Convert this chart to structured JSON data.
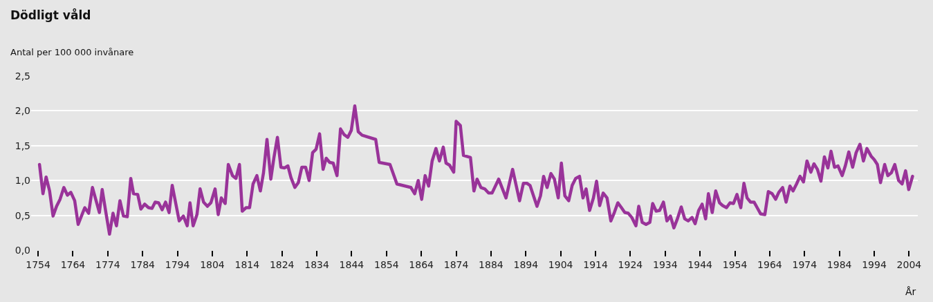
{
  "chart_data": {
    "type": "line",
    "title": "Dödligt våld",
    "ylabel": "Antal per 100 000 invånare",
    "xlabel": "År",
    "x": [
      1754.4,
      1755.4,
      1756.3,
      1757.3,
      1758.3,
      1759.3,
      1760.3,
      1761.4,
      1762.4,
      1763.4,
      1764.5,
      1765.5,
      1767.4,
      1768.5,
      1769.6,
      1771.6,
      1772.4,
      1773.5,
      1774.5,
      1775.5,
      1776.5,
      1777.5,
      1778.5,
      1779.6,
      1780.6,
      1781.4,
      1782.6,
      1783.5,
      1784.6,
      1785.7,
      1786.7,
      1787.6,
      1788.6,
      1789.6,
      1790.6,
      1791.6,
      1792.5,
      1794.5,
      1795.7,
      1796.8,
      1797.6,
      1798.5,
      1799.6,
      1800.5,
      1801.5,
      1802.6,
      1803.6,
      1804.8,
      1805.7,
      1806.6,
      1807.7,
      1808.6,
      1809.8,
      1810.8,
      1811.8,
      1812.6,
      1813.7,
      1814.7,
      1815.7,
      1816.8,
      1817.8,
      1818.7,
      1819.7,
      1820.8,
      1821.7,
      1822.7,
      1823.7,
      1824.7,
      1825.7,
      1826.6,
      1827.7,
      1828.7,
      1829.7,
      1830.8,
      1831.8,
      1832.8,
      1833.8,
      1834.8,
      1835.8,
      1836.7,
      1837.7,
      1838.7,
      1839.8,
      1840.8,
      1841.8,
      1842.9,
      1843.9,
      1844.9,
      1845.9,
      1847.0,
      1850.9,
      1851.9,
      1855.0,
      1857.0,
      1859.4,
      1861.0,
      1862.1,
      1863.1,
      1864.1,
      1865.1,
      1866.1,
      1867.1,
      1868.2,
      1869.2,
      1870.3,
      1871.1,
      1872.1,
      1873.3,
      1874.0,
      1875.2,
      1876.1,
      1878.1,
      1879.1,
      1880.0,
      1881.1,
      1882.2,
      1883.3,
      1884.3,
      1886.2,
      1888.3,
      1890.2,
      1892.2,
      1893.3,
      1894.3,
      1895.2,
      1897.2,
      1898.2,
      1899.1,
      1900.1,
      1901.2,
      1902.2,
      1903.3,
      1904.2,
      1905.2,
      1906.3,
      1907.3,
      1908.3,
      1909.4,
      1910.4,
      1911.3,
      1912.3,
      1913.4,
      1914.3,
      1915.2,
      1916.2,
      1917.3,
      1918.4,
      1919.4,
      1920.4,
      1921.3,
      1922.4,
      1923.4,
      1924.4,
      1925.6,
      1926.4,
      1927.4,
      1928.5,
      1929.6,
      1930.4,
      1931.4,
      1932.4,
      1933.5,
      1934.5,
      1935.5,
      1936.5,
      1937.5,
      1938.6,
      1939.6,
      1940.6,
      1941.7,
      1942.6,
      1943.6,
      1944.6,
      1945.6,
      1946.4,
      1947.5,
      1948.5,
      1949.6,
      1950.5,
      1951.6,
      1952.6,
      1953.6,
      1954.6,
      1955.7,
      1956.6,
      1957.5,
      1958.5,
      1959.5,
      1960.4,
      1961.4,
      1962.6,
      1963.6,
      1964.7,
      1965.7,
      1966.6,
      1967.7,
      1968.7,
      1969.8,
      1970.7,
      1971.7,
      1972.7,
      1973.7,
      1974.7,
      1975.8,
      1976.7,
      1977.7,
      1978.7,
      1979.7,
      1980.7,
      1981.6,
      1982.6,
      1983.6,
      1984.8,
      1985.7,
      1986.7,
      1987.8,
      1988.8,
      1989.9,
      1990.9,
      1991.9,
      1993.1,
      1994.0,
      1994.9,
      1995.8,
      1997.0,
      1997.9,
      1998.9,
      1999.9,
      2001.0,
      2002.0,
      2003.0,
      2003.9,
      2005.0
    ],
    "series": [
      {
        "color": "#993399",
        "values": [
          1.23,
          0.81,
          1.05,
          0.85,
          0.49,
          0.63,
          0.73,
          0.9,
          0.79,
          0.83,
          0.71,
          0.37,
          0.61,
          0.53,
          0.9,
          0.54,
          0.87,
          0.53,
          0.23,
          0.53,
          0.35,
          0.71,
          0.49,
          0.48,
          1.03,
          0.81,
          0.8,
          0.59,
          0.66,
          0.61,
          0.6,
          0.69,
          0.68,
          0.58,
          0.69,
          0.54,
          0.93,
          0.42,
          0.49,
          0.35,
          0.68,
          0.35,
          0.51,
          0.88,
          0.69,
          0.63,
          0.68,
          0.88,
          0.51,
          0.75,
          0.67,
          1.23,
          1.07,
          1.03,
          1.23,
          0.56,
          0.61,
          0.61,
          0.95,
          1.07,
          0.85,
          1.11,
          1.59,
          1.02,
          1.33,
          1.62,
          1.19,
          1.18,
          1.21,
          1.04,
          0.9,
          0.97,
          1.19,
          1.19,
          1.0,
          1.4,
          1.45,
          1.67,
          1.16,
          1.32,
          1.26,
          1.25,
          1.07,
          1.74,
          1.66,
          1.62,
          1.72,
          2.07,
          1.7,
          1.65,
          1.59,
          1.26,
          1.23,
          0.95,
          0.92,
          0.9,
          0.81,
          1.0,
          0.73,
          1.07,
          0.92,
          1.28,
          1.46,
          1.28,
          1.48,
          1.25,
          1.22,
          1.12,
          1.85,
          1.79,
          1.36,
          1.33,
          0.85,
          1.02,
          0.9,
          0.88,
          0.82,
          0.82,
          1.02,
          0.75,
          1.16,
          0.71,
          0.96,
          0.96,
          0.93,
          0.63,
          0.78,
          1.06,
          0.9,
          1.1,
          1.02,
          0.75,
          1.25,
          0.78,
          0.71,
          0.93,
          1.03,
          1.06,
          0.75,
          0.88,
          0.57,
          0.75,
          0.99,
          0.64,
          0.82,
          0.75,
          0.42,
          0.54,
          0.68,
          0.62,
          0.54,
          0.53,
          0.47,
          0.35,
          0.63,
          0.4,
          0.37,
          0.4,
          0.67,
          0.56,
          0.57,
          0.69,
          0.42,
          0.49,
          0.32,
          0.45,
          0.62,
          0.45,
          0.42,
          0.47,
          0.38,
          0.57,
          0.66,
          0.45,
          0.81,
          0.54,
          0.85,
          0.68,
          0.64,
          0.61,
          0.68,
          0.67,
          0.8,
          0.61,
          0.96,
          0.75,
          0.69,
          0.69,
          0.61,
          0.52,
          0.51,
          0.84,
          0.81,
          0.73,
          0.83,
          0.9,
          0.69,
          0.92,
          0.85,
          0.95,
          1.06,
          0.98,
          1.28,
          1.12,
          1.24,
          1.16,
          0.99,
          1.34,
          1.18,
          1.42,
          1.19,
          1.21,
          1.07,
          1.21,
          1.41,
          1.19,
          1.4,
          1.52,
          1.28,
          1.46,
          1.35,
          1.3,
          1.23,
          0.97,
          1.23,
          1.07,
          1.11,
          1.23,
          1.0,
          0.95,
          1.14,
          0.87,
          1.06
        ]
      }
    ],
    "xlim": [
      1752,
      2006.5
    ],
    "xticks": [
      1754,
      1764,
      1774,
      1784,
      1794,
      1804,
      1814,
      1824,
      1834,
      1844,
      1854,
      1864,
      1874,
      1884,
      1894,
      1904,
      1914,
      1924,
      1934,
      1944,
      1954,
      1964,
      1974,
      1984,
      1994,
      2004
    ],
    "ylim": [
      0,
      2.5
    ],
    "yticks": [
      {
        "value": 0,
        "label": "0,0"
      },
      {
        "value": 0.5,
        "label": "0,5"
      },
      {
        "value": 1.0,
        "label": "1,0"
      },
      {
        "value": 1.5,
        "label": "1,5"
      },
      {
        "value": 2.0,
        "label": "2,0"
      },
      {
        "value": 2.5,
        "label": "2,5"
      }
    ],
    "grid": "y",
    "marker": "none",
    "line_style": "solid"
  }
}
